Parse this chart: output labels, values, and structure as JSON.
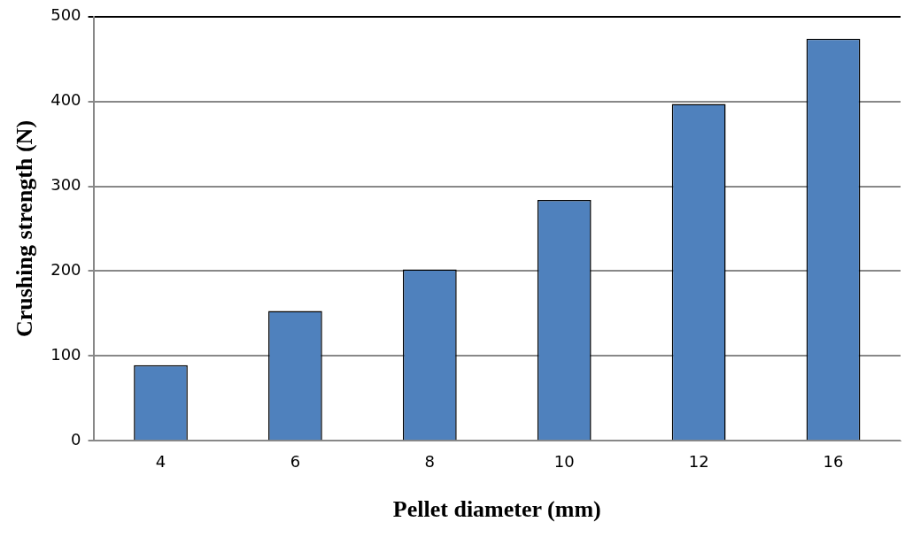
{
  "chart_data": {
    "type": "bar",
    "xlabel": "Pellet diameter (mm)",
    "ylabel": "Crushing strength (N)",
    "categories": [
      "4",
      "6",
      "8",
      "10",
      "12",
      "16"
    ],
    "values": [
      89,
      153,
      202,
      284,
      397,
      474
    ],
    "color": "#4f81bd",
    "ylim": [
      0,
      500
    ],
    "yticks": [
      0,
      100,
      200,
      300,
      400,
      500
    ],
    "grid": "y",
    "legend": false
  }
}
